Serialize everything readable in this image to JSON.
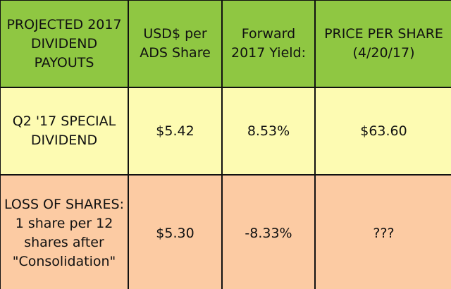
{
  "table": {
    "header": [
      "PROJECTED 2017 DIVIDEND PAYOUTS",
      "USD$ per ADS Share",
      "Forward 2017 Yield:",
      "PRICE PER SHARE (4/20/17)"
    ],
    "rows": [
      [
        "Q2 '17 SPECIAL DIVIDEND",
        "$5.42",
        "8.53%",
        "$63.60"
      ],
      [
        "LOSS OF SHARES: 1 share per 12 shares after \"Consolidation\"",
        "$5.30",
        "-8.33%",
        "???"
      ]
    ]
  }
}
